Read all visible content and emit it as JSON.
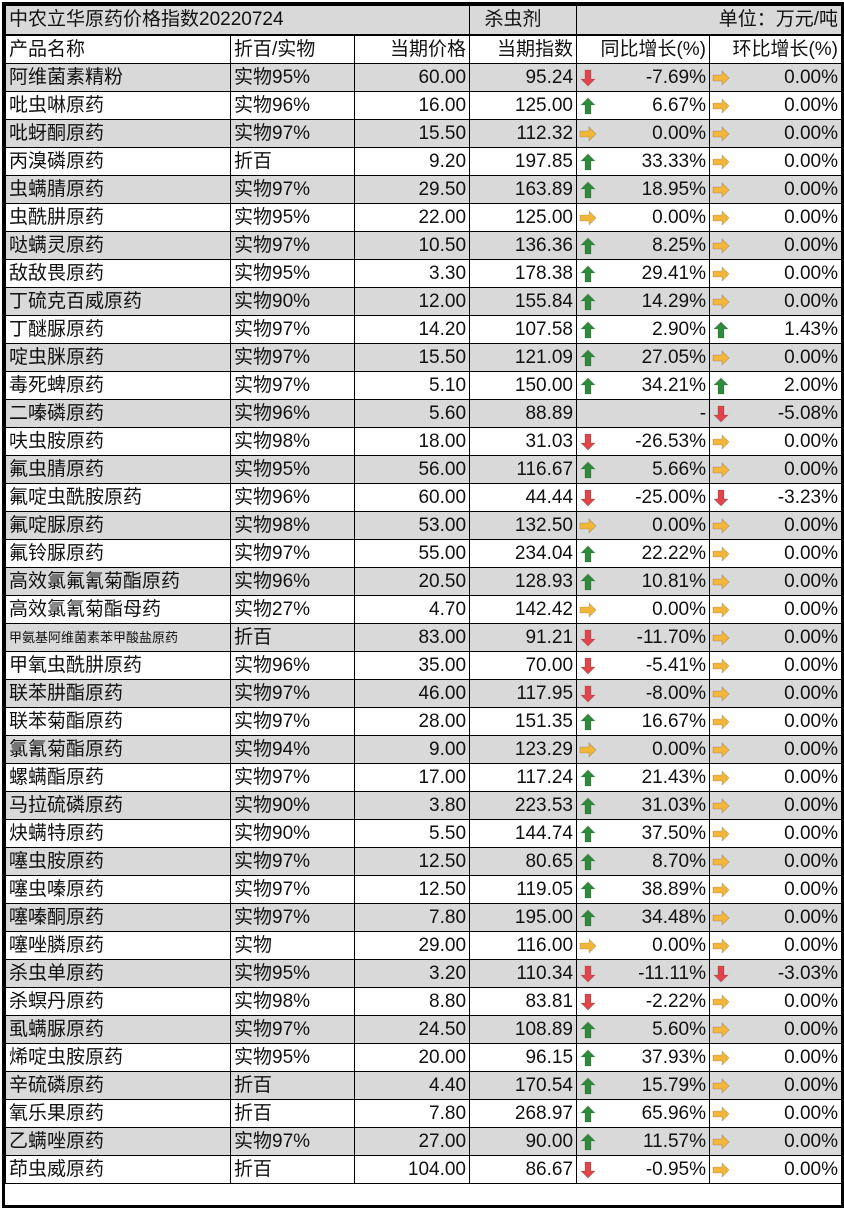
{
  "title": {
    "left": "中农立华原药价格指数20220724",
    "center": "杀虫剂",
    "unit": "单位：万元/吨"
  },
  "columns": [
    "产品名称",
    "折百/实物",
    "当期价格",
    "当期指数",
    "同比增长(%)",
    "环比增长(%)"
  ],
  "colors": {
    "up": "#2e8b3a",
    "down": "#e0454a",
    "flat": "#f2b63a",
    "row_shade": "#d9d9d9"
  },
  "arrow_icons": {
    "u": "arrow-up-green",
    "d": "arrow-down-red",
    "r": "arrow-right-yellow"
  },
  "rows": [
    [
      "阿维菌素精粉",
      "实物95%",
      "60.00",
      "95.24",
      "d",
      "-7.69%",
      "r",
      "0.00%"
    ],
    [
      "吡虫啉原药",
      "实物96%",
      "16.00",
      "125.00",
      "u",
      "6.67%",
      "r",
      "0.00%"
    ],
    [
      "吡蚜酮原药",
      "实物97%",
      "15.50",
      "112.32",
      "r",
      "0.00%",
      "r",
      "0.00%"
    ],
    [
      "丙溴磷原药",
      "折百",
      "9.20",
      "197.85",
      "u",
      "33.33%",
      "r",
      "0.00%"
    ],
    [
      "虫螨腈原药",
      "实物97%",
      "29.50",
      "163.89",
      "u",
      "18.95%",
      "r",
      "0.00%"
    ],
    [
      "虫酰肼原药",
      "实物95%",
      "22.00",
      "125.00",
      "r",
      "0.00%",
      "r",
      "0.00%"
    ],
    [
      "哒螨灵原药",
      "实物97%",
      "10.50",
      "136.36",
      "u",
      "8.25%",
      "r",
      "0.00%"
    ],
    [
      "敌敌畏原药",
      "实物95%",
      "3.30",
      "178.38",
      "u",
      "29.41%",
      "r",
      "0.00%"
    ],
    [
      "丁硫克百威原药",
      "实物90%",
      "12.00",
      "155.84",
      "u",
      "14.29%",
      "r",
      "0.00%"
    ],
    [
      "丁醚脲原药",
      "实物97%",
      "14.20",
      "107.58",
      "u",
      "2.90%",
      "u",
      "1.43%"
    ],
    [
      "啶虫脒原药",
      "实物97%",
      "15.50",
      "121.09",
      "u",
      "27.05%",
      "r",
      "0.00%"
    ],
    [
      "毒死蜱原药",
      "实物97%",
      "5.10",
      "150.00",
      "u",
      "34.21%",
      "u",
      "2.00%"
    ],
    [
      "二嗪磷原药",
      "实物96%",
      "5.60",
      "88.89",
      "",
      "-",
      "d",
      "-5.08%"
    ],
    [
      "呋虫胺原药",
      "实物98%",
      "18.00",
      "31.03",
      "d",
      "-26.53%",
      "r",
      "0.00%"
    ],
    [
      "氟虫腈原药",
      "实物95%",
      "56.00",
      "116.67",
      "u",
      "5.66%",
      "r",
      "0.00%"
    ],
    [
      "氟啶虫酰胺原药",
      "实物96%",
      "60.00",
      "44.44",
      "d",
      "-25.00%",
      "d",
      "-3.23%"
    ],
    [
      "氟啶脲原药",
      "实物98%",
      "53.00",
      "132.50",
      "r",
      "0.00%",
      "r",
      "0.00%"
    ],
    [
      "氟铃脲原药",
      "实物97%",
      "55.00",
      "234.04",
      "u",
      "22.22%",
      "r",
      "0.00%"
    ],
    [
      "高效氯氟氰菊酯原药",
      "实物96%",
      "20.50",
      "128.93",
      "u",
      "10.81%",
      "r",
      "0.00%"
    ],
    [
      "高效氯氰菊酯母药",
      "实物27%",
      "4.70",
      "142.42",
      "r",
      "0.00%",
      "r",
      "0.00%"
    ],
    [
      "甲氨基阿维菌素苯甲酸盐原药",
      "折百",
      "83.00",
      "91.21",
      "d",
      "-11.70%",
      "r",
      "0.00%"
    ],
    [
      "甲氧虫酰肼原药",
      "实物96%",
      "35.00",
      "70.00",
      "d",
      "-5.41%",
      "r",
      "0.00%"
    ],
    [
      "联苯肼酯原药",
      "实物97%",
      "46.00",
      "117.95",
      "d",
      "-8.00%",
      "r",
      "0.00%"
    ],
    [
      "联苯菊酯原药",
      "实物97%",
      "28.00",
      "151.35",
      "u",
      "16.67%",
      "r",
      "0.00%"
    ],
    [
      "氯氰菊酯原药",
      "实物94%",
      "9.00",
      "123.29",
      "r",
      "0.00%",
      "r",
      "0.00%"
    ],
    [
      "螺螨酯原药",
      "实物97%",
      "17.00",
      "117.24",
      "u",
      "21.43%",
      "r",
      "0.00%"
    ],
    [
      "马拉硫磷原药",
      "实物90%",
      "3.80",
      "223.53",
      "u",
      "31.03%",
      "r",
      "0.00%"
    ],
    [
      "炔螨特原药",
      "实物90%",
      "5.50",
      "144.74",
      "u",
      "37.50%",
      "r",
      "0.00%"
    ],
    [
      "噻虫胺原药",
      "实物97%",
      "12.50",
      "80.65",
      "u",
      "8.70%",
      "r",
      "0.00%"
    ],
    [
      "噻虫嗪原药",
      "实物97%",
      "12.50",
      "119.05",
      "u",
      "38.89%",
      "r",
      "0.00%"
    ],
    [
      "噻嗪酮原药",
      "实物97%",
      "7.80",
      "195.00",
      "u",
      "34.48%",
      "r",
      "0.00%"
    ],
    [
      "噻唑膦原药",
      "实物",
      "29.00",
      "116.00",
      "r",
      "0.00%",
      "r",
      "0.00%"
    ],
    [
      "杀虫单原药",
      "实物95%",
      "3.20",
      "110.34",
      "d",
      "-11.11%",
      "d",
      "-3.03%"
    ],
    [
      "杀螟丹原药",
      "实物98%",
      "8.80",
      "83.81",
      "d",
      "-2.22%",
      "r",
      "0.00%"
    ],
    [
      "虱螨脲原药",
      "实物97%",
      "24.50",
      "108.89",
      "u",
      "5.60%",
      "r",
      "0.00%"
    ],
    [
      "烯啶虫胺原药",
      "实物95%",
      "20.00",
      "96.15",
      "u",
      "37.93%",
      "r",
      "0.00%"
    ],
    [
      "辛硫磷原药",
      "折百",
      "4.40",
      "170.54",
      "u",
      "15.79%",
      "r",
      "0.00%"
    ],
    [
      "氧乐果原药",
      "折百",
      "7.80",
      "268.97",
      "u",
      "65.96%",
      "r",
      "0.00%"
    ],
    [
      "乙螨唑原药",
      "实物97%",
      "27.00",
      "90.00",
      "u",
      "11.57%",
      "r",
      "0.00%"
    ],
    [
      "茚虫威原药",
      "折百",
      "104.00",
      "86.67",
      "d",
      "-0.95%",
      "r",
      "0.00%"
    ]
  ]
}
